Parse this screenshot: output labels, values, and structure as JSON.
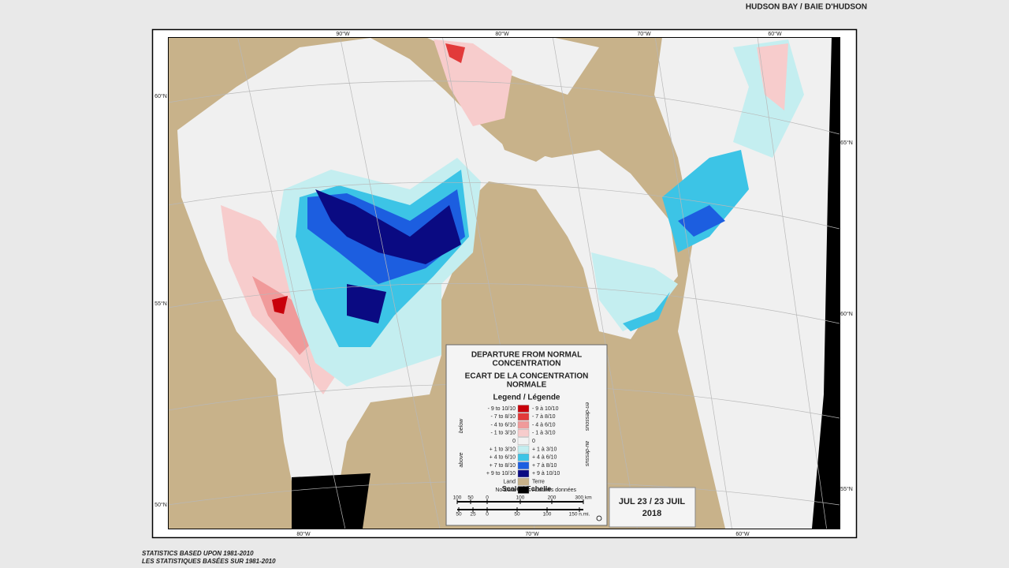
{
  "header": {
    "title": "HUDSON BAY / BAIE D'HUDSON"
  },
  "graticule": {
    "top": [
      "90°W",
      "80°W",
      "70°W",
      "60°W"
    ],
    "bottom": [
      "80°W",
      "70°W",
      "60°W"
    ],
    "left": [
      "60°N",
      "55°N",
      "50°N"
    ],
    "right": [
      "65°N",
      "60°N",
      "55°N"
    ]
  },
  "legend": {
    "title_en": [
      "DEPARTURE FROM NORMAL",
      "CONCENTRATION"
    ],
    "title_fr": [
      "ECART DE LA CONCENTRATION",
      "NORMALE"
    ],
    "subtitle": "Legend / Légende",
    "side": {
      "below": "below",
      "en_dessous": "en-dessous",
      "above": "above",
      "au_dessus": "au-dessus"
    },
    "entries": [
      {
        "en": "- 9 to 10/10",
        "fr": "- 9 à 10/10",
        "color": "#c8000a"
      },
      {
        "en": "- 7 to 8/10",
        "fr": "- 7 à 8/10",
        "color": "#e23a3a"
      },
      {
        "en": "- 4 to 6/10",
        "fr": "- 4 à 6/10",
        "color": "#f09a9a"
      },
      {
        "en": "- 1 to 3/10",
        "fr": "- 1 à 3/10",
        "color": "#f7cccc"
      },
      {
        "en": "0",
        "fr": "0",
        "color": "#f2f2f2"
      },
      {
        "en": "+ 1 to 3/10",
        "fr": "+ 1 à 3/10",
        "color": "#c4eef0"
      },
      {
        "en": "+ 4 to 6/10",
        "fr": "+ 4 à 6/10",
        "color": "#3cc4e6"
      },
      {
        "en": "+ 7 to 8/10",
        "fr": "+ 7 à 8/10",
        "color": "#1c5ee0"
      },
      {
        "en": "+ 9 to 10/10",
        "fr": "+ 9 à 10/10",
        "color": "#0a0a82"
      },
      {
        "en": "Land",
        "fr": "Terre",
        "color": "#c8b28a"
      },
      {
        "en": "No Data",
        "fr": "Aucunes données",
        "color": "#000000"
      }
    ],
    "scale_title": "Scale / Echelle",
    "km": [
      "100",
      "50",
      "0",
      "100",
      "200",
      "300 km"
    ],
    "nmi": [
      "50",
      "25",
      "0",
      "50",
      "100",
      "150 n.mi."
    ]
  },
  "date": {
    "line1": "JUL 23 / 23 JUIL",
    "line2": "2018"
  },
  "footer": [
    "STATISTICS BASED UPON 1981-2010",
    "LES STATISTIQUES BASÉES SUR 1981-2010"
  ]
}
